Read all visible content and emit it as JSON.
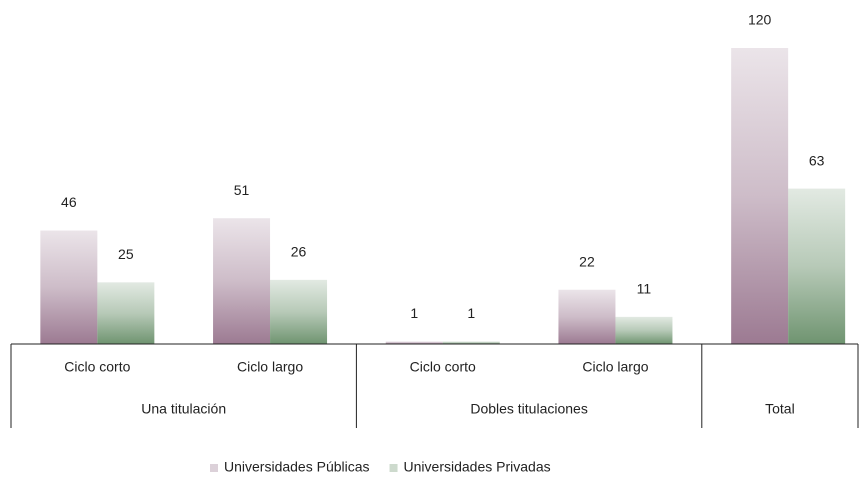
{
  "chart_data": {
    "type": "bar",
    "groups": [
      {
        "label": "Una titulación",
        "categories": [
          "Ciclo corto",
          "Ciclo largo"
        ]
      },
      {
        "label": "Dobles titulaciones",
        "categories": [
          "Ciclo corto",
          "Ciclo largo"
        ]
      },
      {
        "label": "Total",
        "categories": [
          null
        ]
      }
    ],
    "series": [
      {
        "name": "Universidades Públicas",
        "color": "#9c7a92",
        "values": [
          46,
          51,
          1,
          22,
          120
        ]
      },
      {
        "name": "Universidades Privadas",
        "color": "#6f9470",
        "values": [
          25,
          26,
          1,
          11,
          63
        ]
      }
    ],
    "legend": "bottom"
  }
}
